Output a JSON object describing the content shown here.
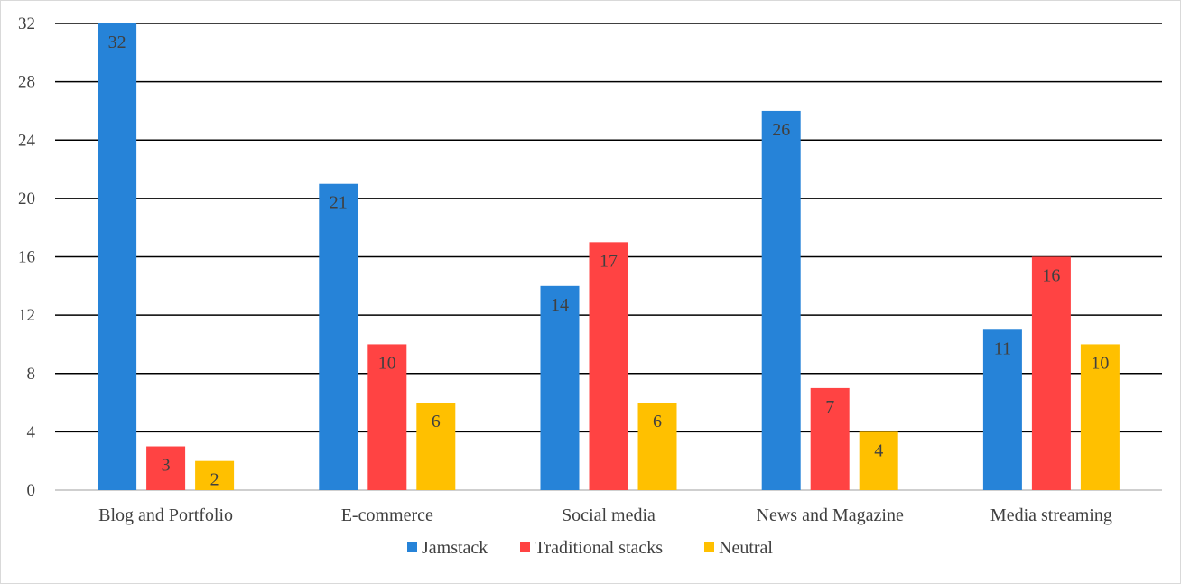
{
  "chart_data": {
    "type": "bar",
    "title": "",
    "xlabel": "",
    "ylabel": "",
    "categories": [
      "Blog and Portfolio",
      "E-commerce",
      "Social media",
      "News and Magazine",
      "Media streaming"
    ],
    "series": [
      {
        "name": "Jamstack",
        "color": "#2683d8",
        "values": [
          32,
          21,
          14,
          26,
          11
        ]
      },
      {
        "name": "Traditional stacks",
        "color": "#ff4343",
        "values": [
          3,
          10,
          17,
          7,
          16
        ]
      },
      {
        "name": "Neutral",
        "color": "#ffc000",
        "values": [
          2,
          6,
          6,
          4,
          10
        ]
      }
    ],
    "ylim": [
      0,
      32
    ],
    "yticks": [
      0,
      4,
      8,
      12,
      16,
      20,
      24,
      28,
      32
    ],
    "grid": true,
    "legend_position": "bottom",
    "data_labels": true
  }
}
